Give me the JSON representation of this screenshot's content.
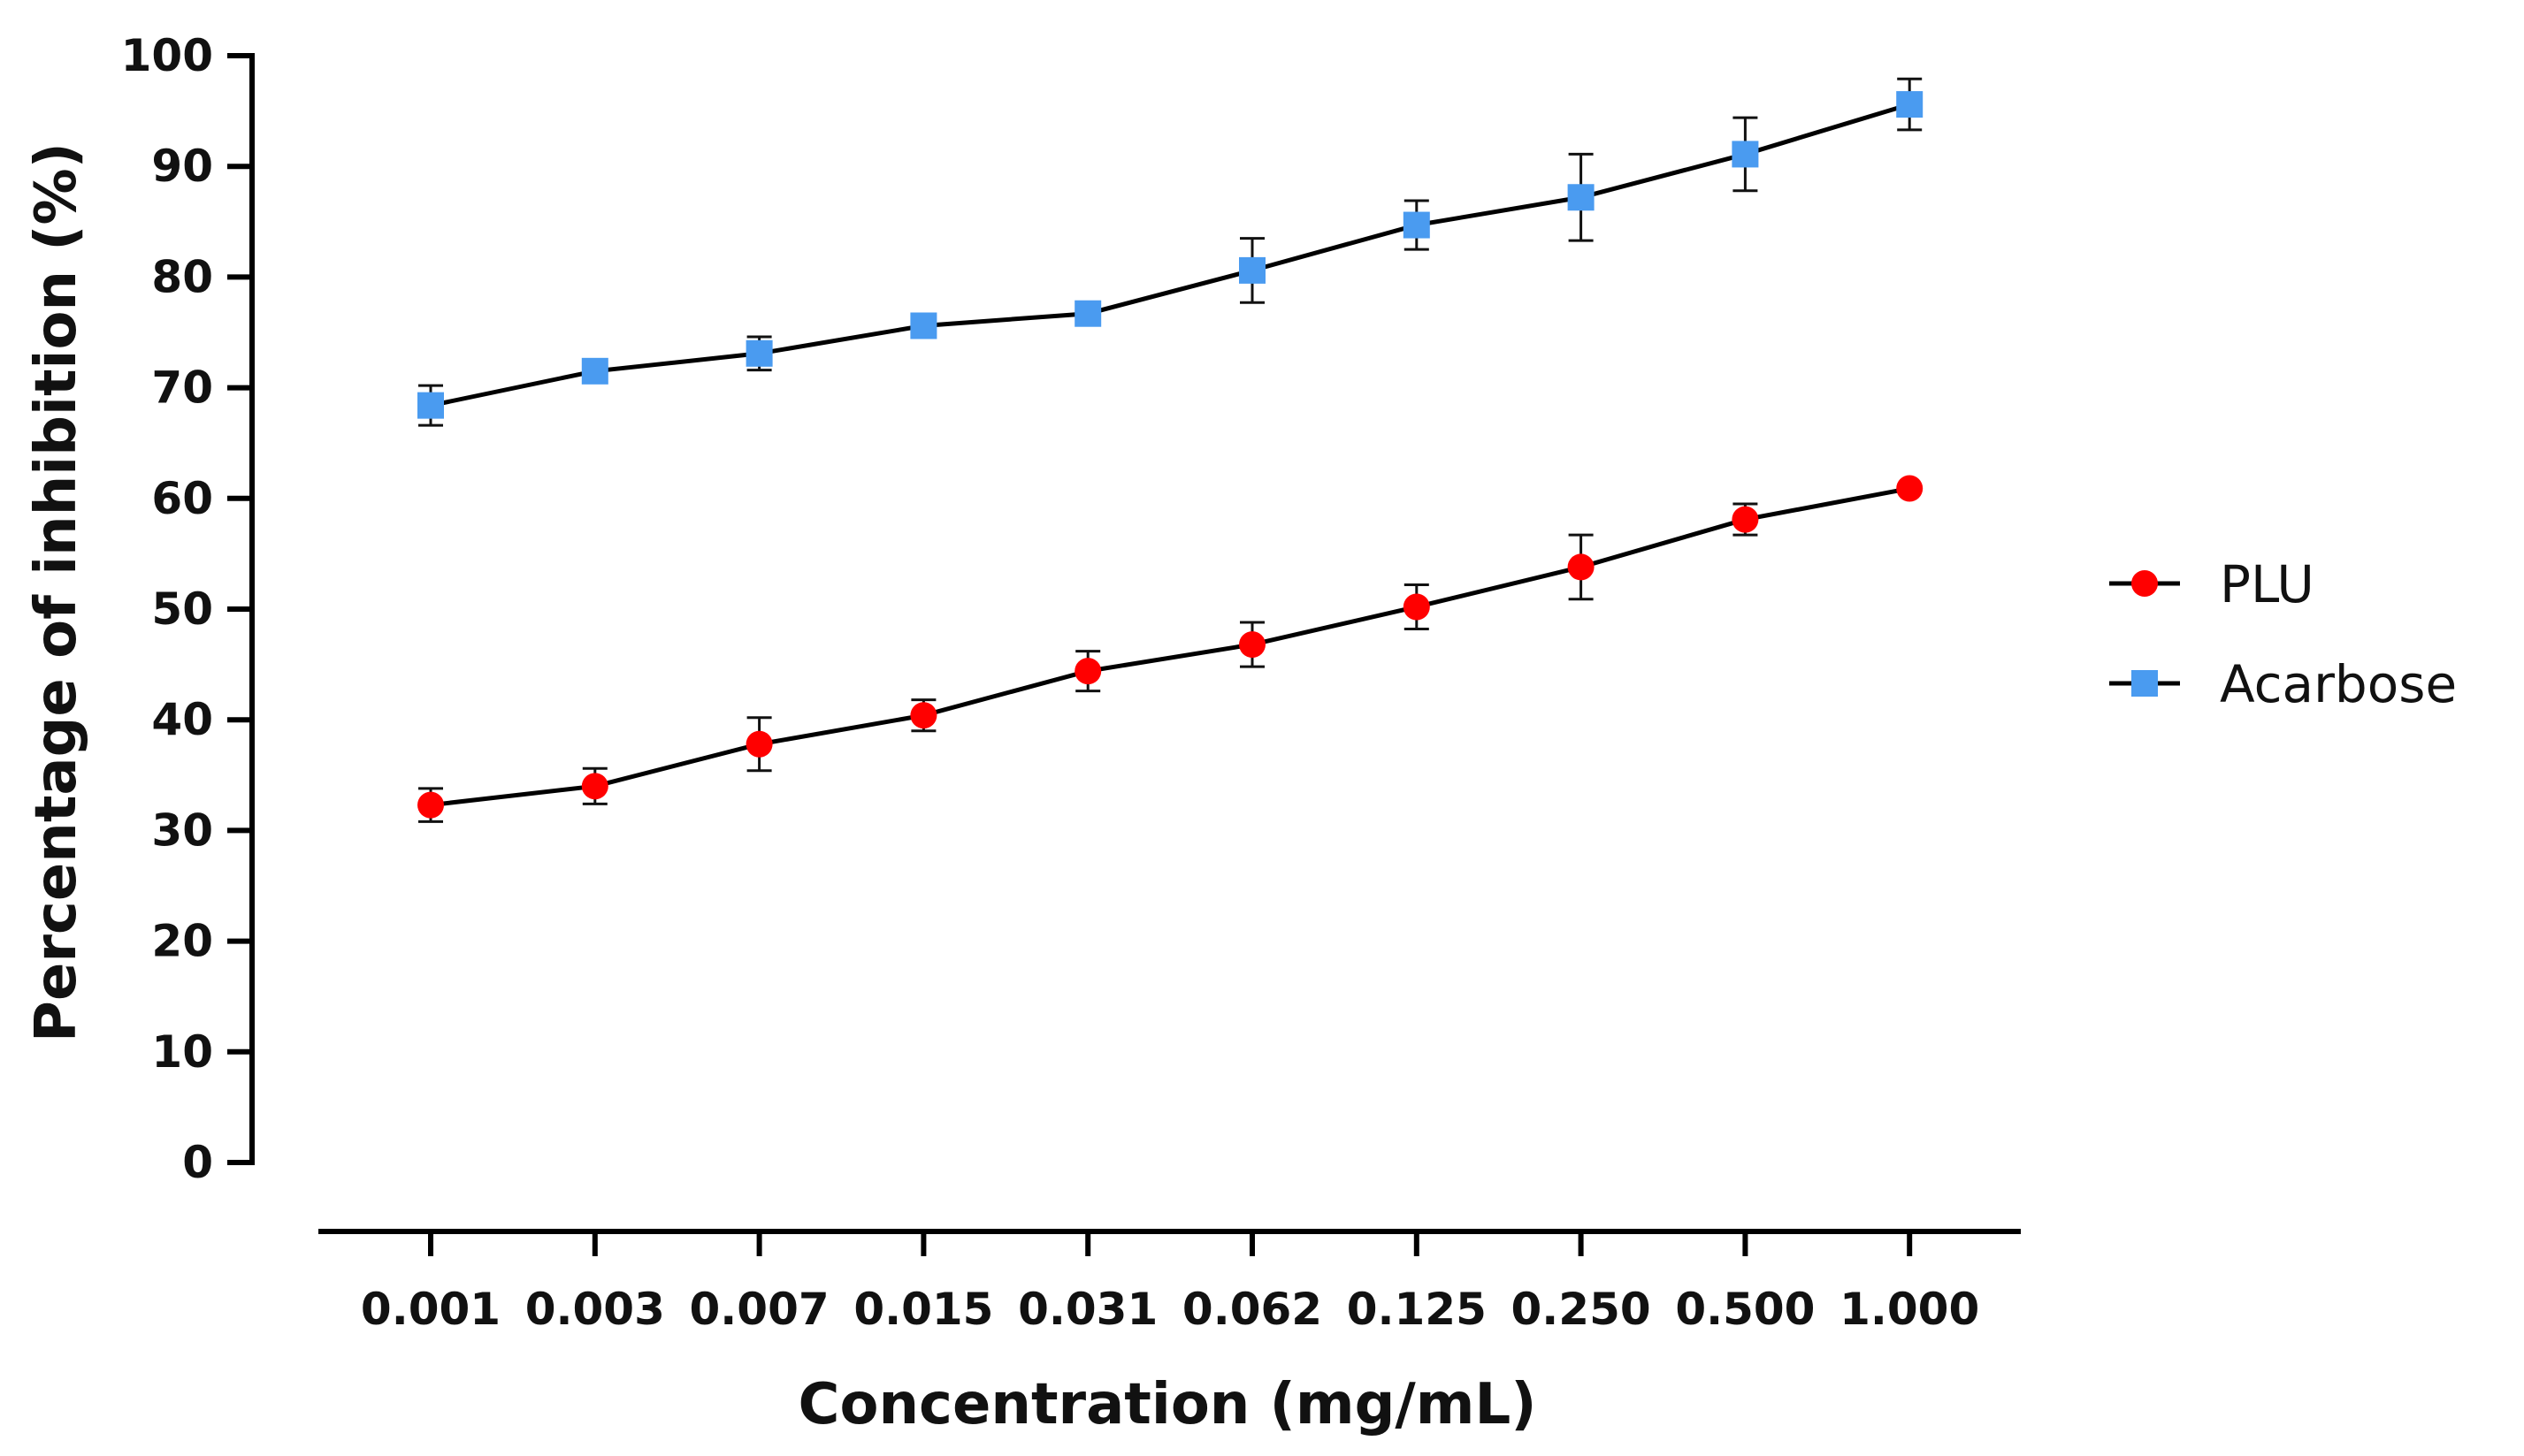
{
  "chart_data": {
    "type": "line",
    "title": "",
    "xlabel": "Concentration (mg/mL)",
    "ylabel": "Percentage of inhibition (%)",
    "categories": [
      "0.001",
      "0.003",
      "0.007",
      "0.015",
      "0.031",
      "0.062",
      "0.125",
      "0.250",
      "0.500",
      "1.000"
    ],
    "ylim": [
      0,
      100
    ],
    "yticks": [
      "0",
      "10",
      "20",
      "30",
      "40",
      "50",
      "60",
      "70",
      "80",
      "90",
      "100"
    ],
    "grid": false,
    "legend_position": "right",
    "series": [
      {
        "name": "PLU",
        "marker": "circle",
        "color": "#ff0000",
        "values": [
          32.3,
          34.0,
          37.8,
          40.4,
          44.4,
          46.8,
          50.2,
          53.8,
          58.1,
          60.9
        ],
        "errors": [
          1.5,
          1.6,
          2.4,
          1.4,
          1.8,
          2.0,
          2.0,
          2.9,
          1.4,
          0.0
        ]
      },
      {
        "name": "Acarbose",
        "marker": "square",
        "color": "#4a9bf0",
        "values": [
          68.4,
          71.5,
          73.1,
          75.6,
          76.7,
          80.6,
          84.7,
          87.2,
          91.1,
          95.6
        ],
        "errors": [
          1.8,
          0.0,
          1.5,
          0.0,
          0.9,
          2.9,
          2.2,
          3.9,
          3.3,
          2.3
        ]
      }
    ]
  }
}
